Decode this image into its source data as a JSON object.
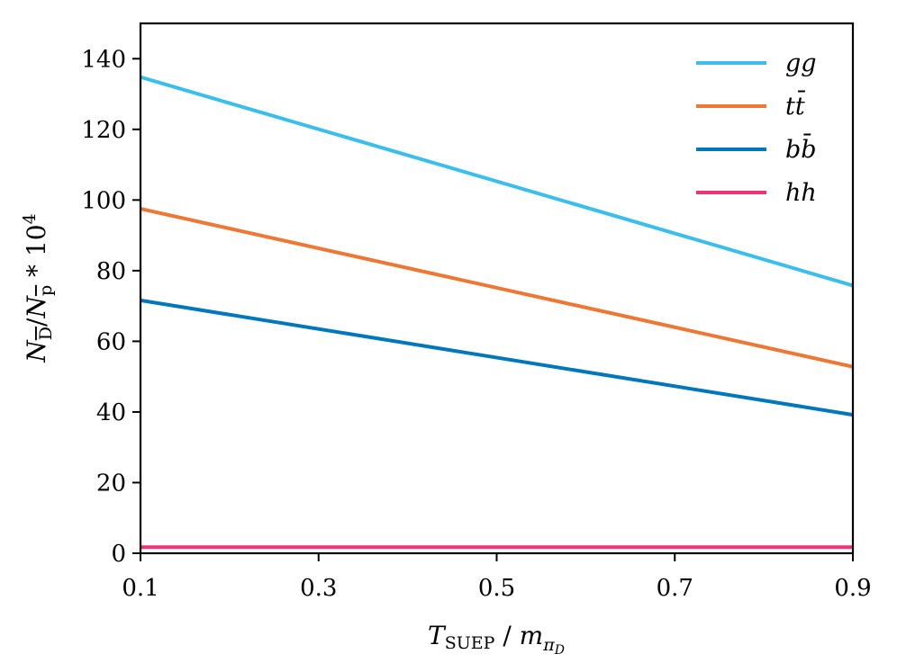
{
  "chart_data": {
    "type": "line",
    "title": "",
    "xlabel": "T_SUEP / m_πD",
    "ylabel": "N_D̄ / N_p̄ * 10^4",
    "xlim": [
      0.1,
      0.9
    ],
    "ylim": [
      0,
      150
    ],
    "xticks": [
      0.1,
      0.3,
      0.5,
      0.7,
      0.9
    ],
    "xtick_labels": [
      "0.1",
      "0.3",
      "0.5",
      "0.7",
      "0.9"
    ],
    "yticks": [
      0,
      20,
      40,
      60,
      80,
      100,
      120,
      140
    ],
    "ytick_labels": [
      "0",
      "20",
      "40",
      "60",
      "80",
      "100",
      "120",
      "140"
    ],
    "grid": false,
    "legend_position": "top-right",
    "series": [
      {
        "name": "gg",
        "color": "#3BBEEB",
        "x": [
          0.1,
          0.9
        ],
        "y": [
          134.8,
          75.8
        ]
      },
      {
        "name": "tt̄",
        "color": "#EE7733",
        "x": [
          0.1,
          0.9
        ],
        "y": [
          97.5,
          52.8
        ]
      },
      {
        "name": "bb̄",
        "color": "#0077BB",
        "x": [
          0.1,
          0.9
        ],
        "y": [
          71.6,
          39.2
        ]
      },
      {
        "name": "hh",
        "color": "#EE3377",
        "x": [
          0.1,
          0.9
        ],
        "y": [
          1.7,
          1.7
        ]
      }
    ],
    "axis_label_parts": {
      "x_main": "T",
      "x_sub": "SUEP",
      "x_sep": " / ",
      "x_den": "m",
      "x_den_sub": "π",
      "x_den_subsub": "D",
      "y_num": "N",
      "y_num_sub": "D",
      "y_sep": "/",
      "y_den": "N",
      "y_den_sub": "p",
      "y_times": " * 10",
      "y_exp": "4"
    }
  }
}
